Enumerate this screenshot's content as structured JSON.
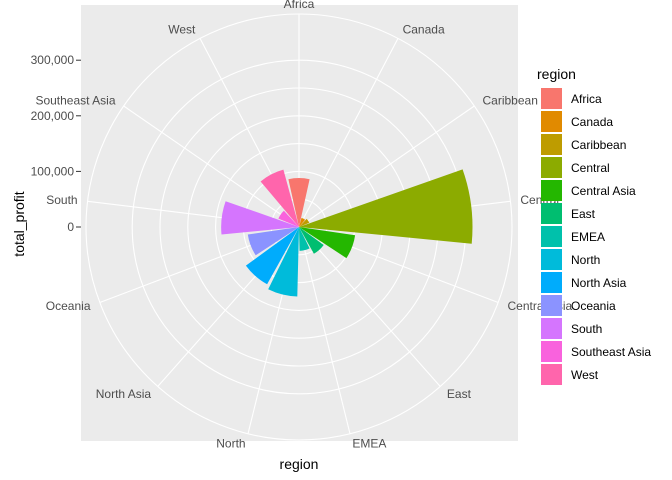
{
  "chart_data": {
    "type": "bar",
    "coord": "polar",
    "xlabel": "region",
    "ylabel": "total_profit",
    "yticks": [
      0,
      100000,
      200000,
      300000
    ],
    "ytick_labels": [
      "0",
      "100,000",
      "200,000",
      "300,000"
    ],
    "grid": true,
    "legend": {
      "title": "region",
      "placement": "right"
    },
    "categories": [
      "Africa",
      "Canada",
      "Caribbean",
      "Central",
      "Central Asia",
      "East",
      "EMEA",
      "North",
      "North Asia",
      "Oceania",
      "South",
      "Southeast Asia",
      "West"
    ],
    "values": [
      88000,
      17000,
      20000,
      312000,
      102000,
      55000,
      43000,
      125000,
      118000,
      93000,
      140000,
      40000,
      107000
    ],
    "colors": [
      "#F8766D",
      "#E18A00",
      "#BE9C00",
      "#8CAB00",
      "#24B700",
      "#00BE70",
      "#00C1AB",
      "#00BBDA",
      "#00ACFC",
      "#8B93FF",
      "#D575FE",
      "#F962DD",
      "#FF65AC"
    ]
  }
}
